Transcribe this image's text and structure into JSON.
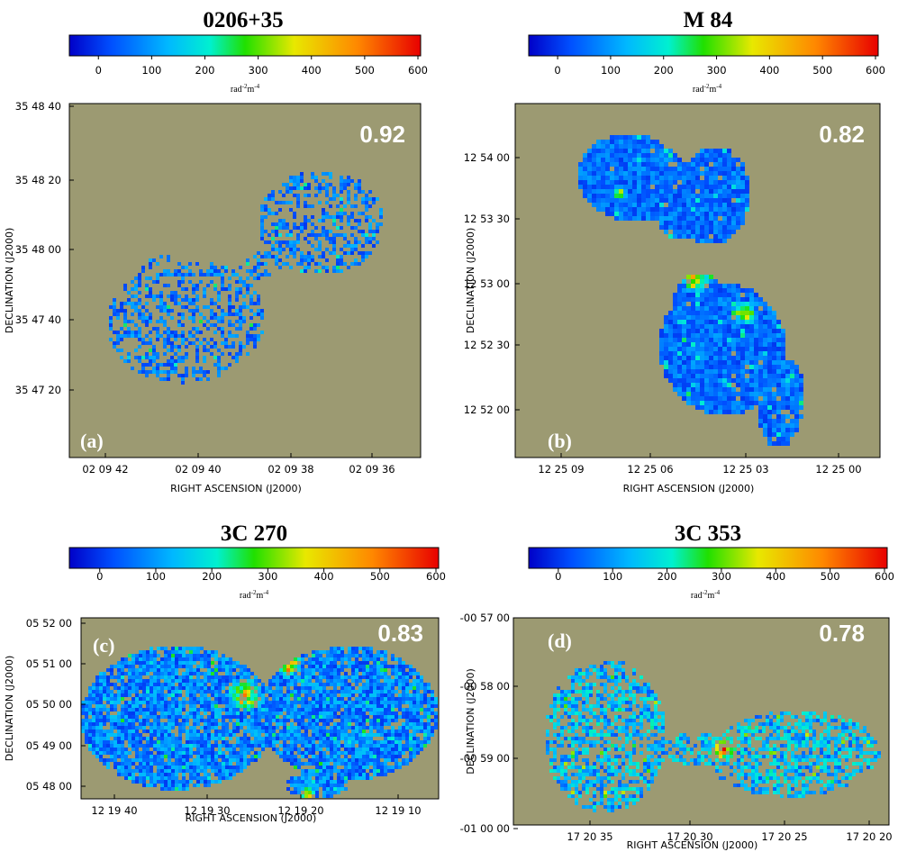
{
  "colors": {
    "background": "#9c9a72",
    "colormap": [
      "#0000c8",
      "#0050ff",
      "#00b8ff",
      "#00f0d0",
      "#20e000",
      "#e8e800",
      "#ff8800",
      "#e80000"
    ]
  },
  "panels": [
    {
      "name": "panel-a",
      "title": "0206+35",
      "colorbar_ticks": [
        "0",
        "100",
        "200",
        "300",
        "400",
        "500",
        "600"
      ],
      "colorbar_unit": "rad m",
      "fraction": "0.92",
      "letter": "(a)",
      "ra_ticks": [
        "02 09 42",
        "02 09 40",
        "02 09 38",
        "02 09 36"
      ],
      "dec_ticks": [
        "35 48 40",
        "35 48 20",
        "35 48 00",
        "35 47 40",
        "35 47 20"
      ],
      "xlabel": "RIGHT ASCENSION  (J2000)",
      "ylabel": "DECLINATION  (J2000)"
    },
    {
      "name": "panel-b",
      "title": "M 84",
      "colorbar_ticks": [
        "0",
        "100",
        "200",
        "300",
        "400",
        "500",
        "600"
      ],
      "colorbar_unit": "rad m",
      "fraction": "0.82",
      "letter": "(b)",
      "ra_ticks": [
        "12 25 09",
        "12 25 06",
        "12 25 03",
        "12 25 00"
      ],
      "dec_ticks": [
        "12 54 00",
        "12 53 30",
        "12 53 00",
        "12 52 30",
        "12 52 00"
      ],
      "xlabel": "RIGHT ASCENSION  (J2000)",
      "ylabel": "DECLINATION  (J2000)"
    },
    {
      "name": "panel-c",
      "title": "3C 270",
      "colorbar_ticks": [
        "0",
        "100",
        "200",
        "300",
        "400",
        "500",
        "600"
      ],
      "colorbar_unit": "rad m",
      "fraction": "0.83",
      "letter": "(c)",
      "ra_ticks": [
        "12 19 40",
        "12 19 30",
        "12 19 20",
        "12 19 10"
      ],
      "dec_ticks": [
        "05 52 00",
        "05 51 00",
        "05 50 00",
        "05 49 00",
        "05 48 00"
      ],
      "xlabel": "RIGHT ASCENSION  (J2000)",
      "ylabel": "DECLINATION  (J2000)"
    },
    {
      "name": "panel-d",
      "title": "3C 353",
      "colorbar_ticks": [
        "0",
        "100",
        "200",
        "300",
        "400",
        "500",
        "600"
      ],
      "colorbar_unit": "rad m",
      "fraction": "0.78",
      "letter": "(d)",
      "ra_ticks": [
        "17 20 35",
        "17 20 30",
        "17 20 25",
        "17 20 20"
      ],
      "dec_ticks": [
        "-00 57 00",
        "-00 58 00",
        "-00 59 00",
        "-01 00 00"
      ],
      "xlabel": "RIGHT ASCENSION  (J2000)",
      "ylabel": "DECLINATION  (J2000)"
    }
  ]
}
